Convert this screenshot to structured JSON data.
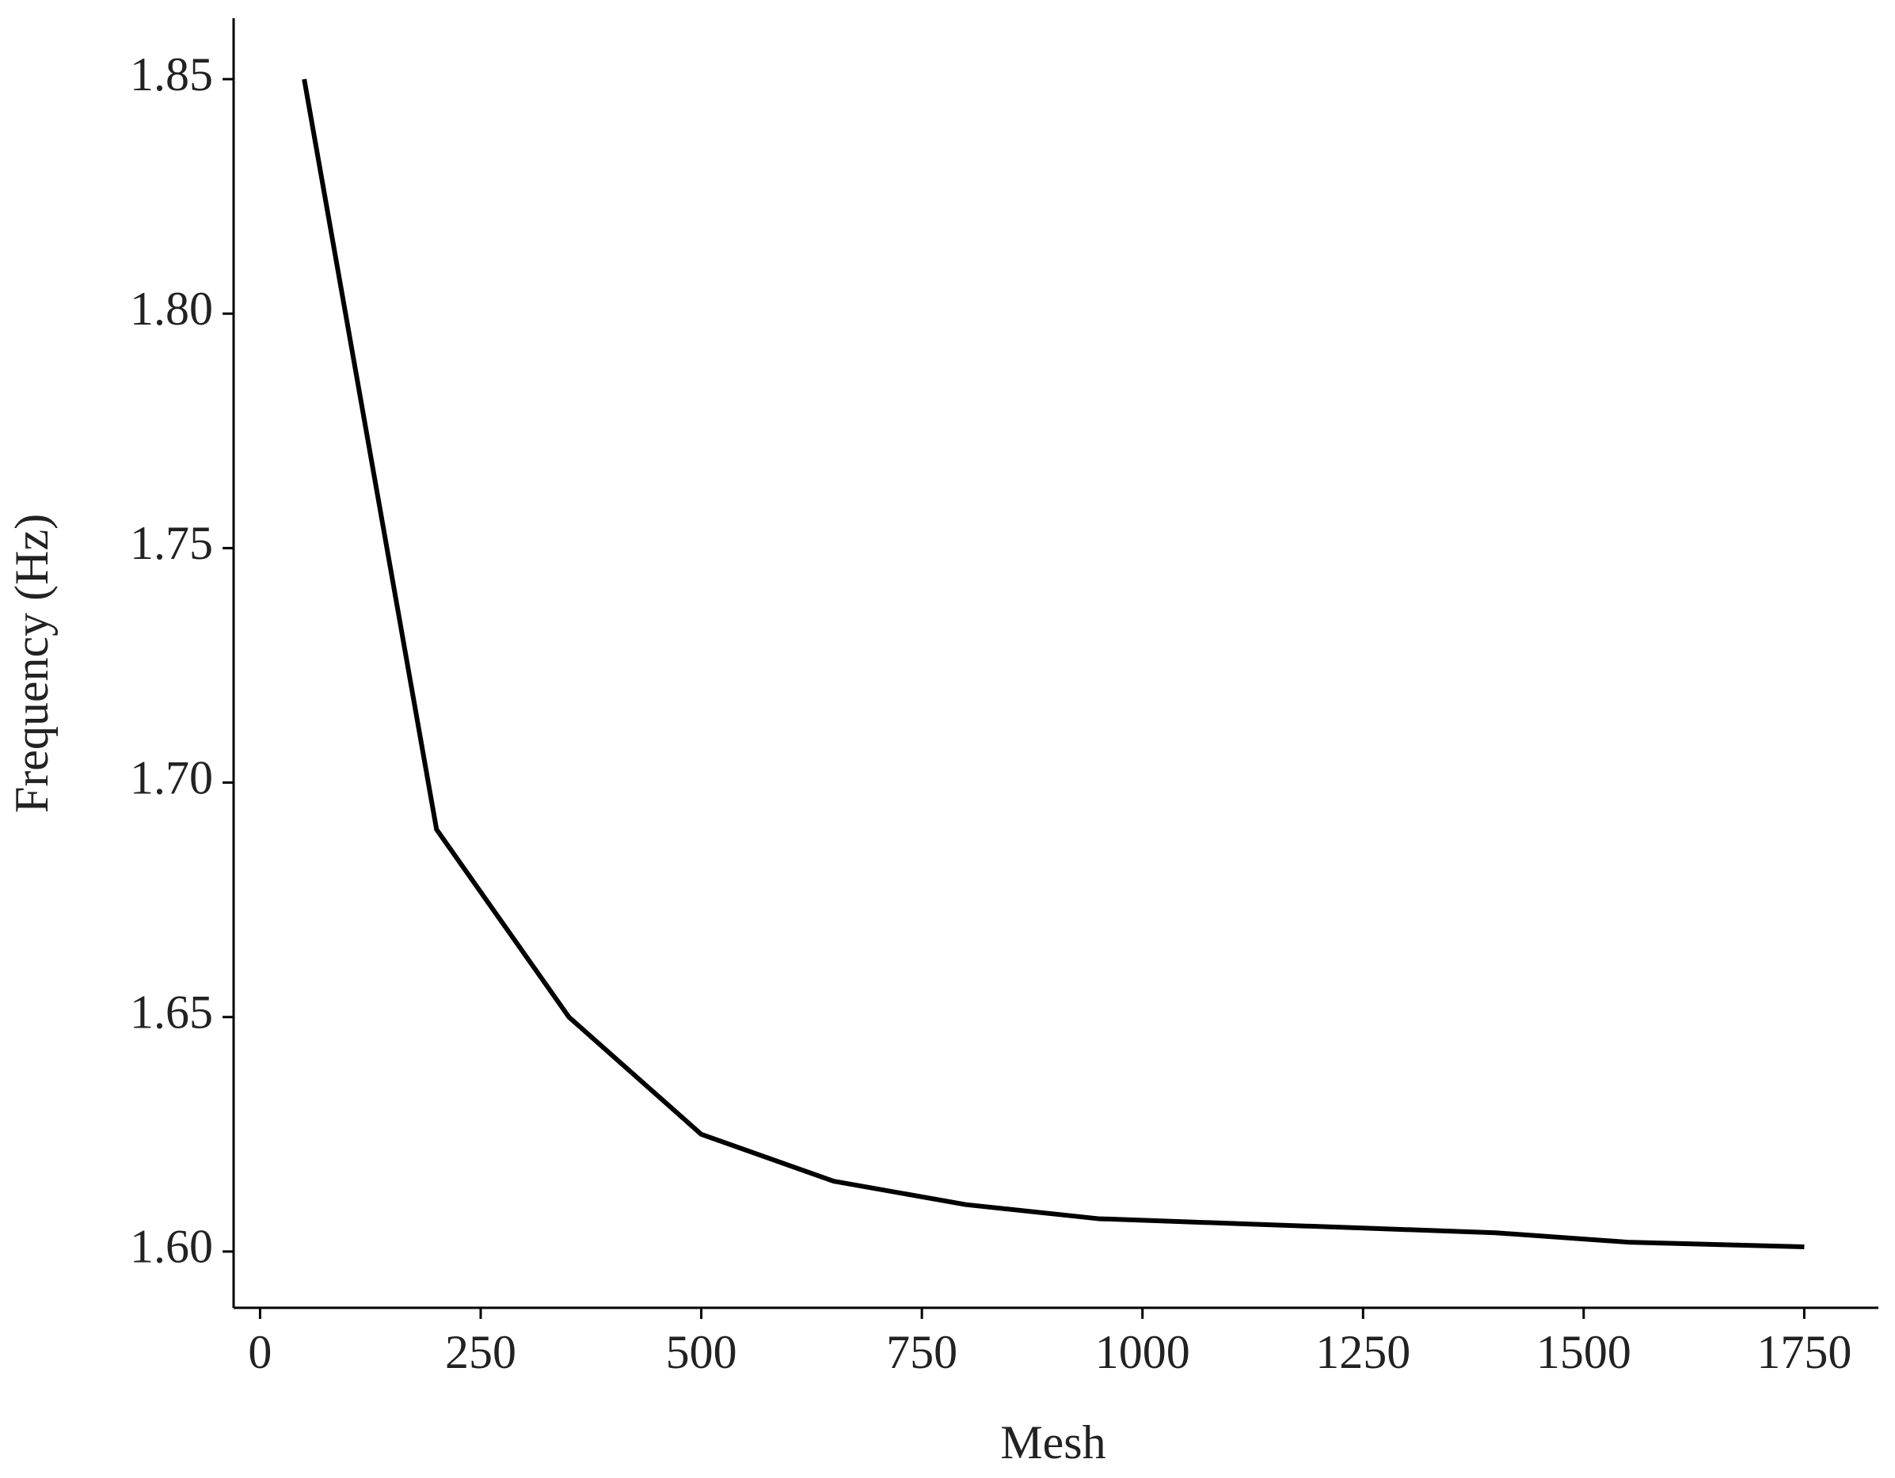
{
  "chart_data": {
    "type": "line",
    "x_label": "Mesh",
    "y_label": "Frequency (Hz)",
    "x": [
      50,
      200,
      350,
      500,
      650,
      800,
      950,
      1100,
      1250,
      1400,
      1550,
      1750
    ],
    "series": [
      {
        "color": "#000000",
        "values": [
          1.85,
          1.69,
          1.65,
          1.625,
          1.615,
          1.61,
          1.607,
          1.606,
          1.605,
          1.604,
          1.602,
          1.601
        ]
      }
    ],
    "xlim": [
      -30,
      1834
    ],
    "ylim": [
      1.588,
      1.863
    ],
    "xticks": [
      0,
      250,
      500,
      750,
      1000,
      1250,
      1500,
      1750
    ],
    "yticks": [
      {
        "value": 1.6,
        "label": "1.60"
      },
      1.65,
      {
        "value": 1.7,
        "label": "1.70"
      },
      1.75,
      {
        "value": 1.8,
        "label": "1.80"
      },
      1.85
    ],
    "grid": false
  }
}
